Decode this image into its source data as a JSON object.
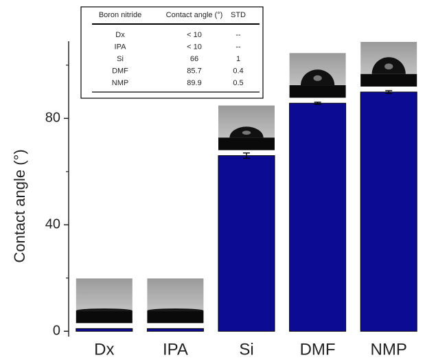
{
  "chart_data": {
    "type": "bar",
    "y_label": "Contact angle (°)",
    "categories": [
      "Dx",
      "IPA",
      "Si",
      "DMF",
      "NMP"
    ],
    "values": [
      1,
      1,
      66,
      85.7,
      89.9
    ],
    "errors": [
      null,
      null,
      1,
      0.4,
      0.5
    ],
    "color": "#0b0b94",
    "ylim": [
      -2,
      109
    ],
    "yticks": [
      0,
      40,
      80
    ],
    "minor_yticks": [
      20,
      60,
      100
    ],
    "table": {
      "columns": [
        "Boron nitride",
        "Contact angle (°)",
        "STD"
      ],
      "rows": [
        [
          "Dx",
          "< 10",
          "--"
        ],
        [
          "IPA",
          "< 10",
          "--"
        ],
        [
          "Si",
          "66",
          "1"
        ],
        [
          "DMF",
          "85.7",
          "0.4"
        ],
        [
          "NMP",
          "89.9",
          "0.5"
        ]
      ]
    }
  }
}
